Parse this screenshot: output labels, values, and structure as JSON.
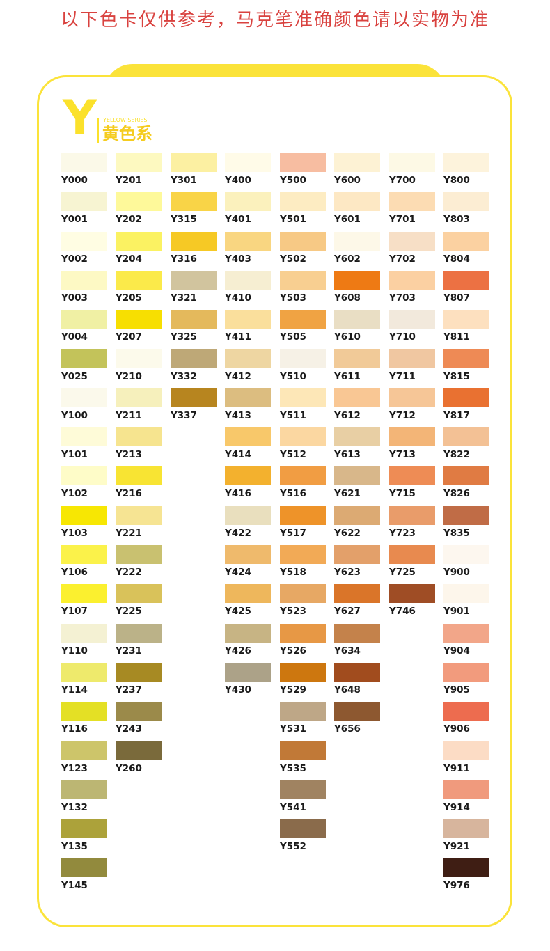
{
  "notice": "以下色卡仅供参考，马克笔准确颜色请以实物为准",
  "header": {
    "letter": "Y",
    "series_en": "YELLOW SERIES",
    "series_cn": "黄色系"
  },
  "columns": [
    [
      {
        "code": "Y000",
        "color": "#fbf9e8"
      },
      {
        "code": "Y001",
        "color": "#f7f4d2"
      },
      {
        "code": "Y002",
        "color": "#fffde3"
      },
      {
        "code": "Y003",
        "color": "#fdf9c4"
      },
      {
        "code": "Y004",
        "color": "#f0f0a4"
      },
      {
        "code": "Y025",
        "color": "#c3c35a"
      },
      {
        "code": "Y100",
        "color": "#fbf9eb"
      },
      {
        "code": "Y101",
        "color": "#fefbd8"
      },
      {
        "code": "Y102",
        "color": "#fefcc8"
      },
      {
        "code": "Y103",
        "color": "#f7e703"
      },
      {
        "code": "Y106",
        "color": "#fbf24a"
      },
      {
        "code": "Y107",
        "color": "#fbf02f"
      },
      {
        "code": "Y110",
        "color": "#f4f1d3"
      },
      {
        "code": "Y114",
        "color": "#eeea6c"
      },
      {
        "code": "Y116",
        "color": "#e4e025"
      },
      {
        "code": "Y123",
        "color": "#cdc56a"
      },
      {
        "code": "Y132",
        "color": "#bcb673"
      },
      {
        "code": "Y135",
        "color": "#aca23a"
      },
      {
        "code": "Y145",
        "color": "#928a3d"
      }
    ],
    [
      {
        "code": "Y201",
        "color": "#fdf9c0"
      },
      {
        "code": "Y202",
        "color": "#fef99a"
      },
      {
        "code": "Y204",
        "color": "#fbf262"
      },
      {
        "code": "Y205",
        "color": "#fbea4a"
      },
      {
        "code": "Y207",
        "color": "#f7df01"
      },
      {
        "code": "Y210",
        "color": "#fcfaeb"
      },
      {
        "code": "Y211",
        "color": "#f6f0bc"
      },
      {
        "code": "Y213",
        "color": "#f6e48f"
      },
      {
        "code": "Y216",
        "color": "#f8e433"
      },
      {
        "code": "Y221",
        "color": "#f6e493"
      },
      {
        "code": "Y222",
        "color": "#c9c170"
      },
      {
        "code": "Y225",
        "color": "#d9c25a"
      },
      {
        "code": "Y231",
        "color": "#bbb288"
      },
      {
        "code": "Y237",
        "color": "#a78a23"
      },
      {
        "code": "Y243",
        "color": "#9b8a4a"
      },
      {
        "code": "Y260",
        "color": "#7a6a3b"
      }
    ],
    [
      {
        "code": "Y301",
        "color": "#fcf0a2"
      },
      {
        "code": "Y315",
        "color": "#f9d447"
      },
      {
        "code": "Y316",
        "color": "#f6c925"
      },
      {
        "code": "Y321",
        "color": "#d1c49e"
      },
      {
        "code": "Y325",
        "color": "#e4b95c"
      },
      {
        "code": "Y332",
        "color": "#bea877"
      },
      {
        "code": "Y337",
        "color": "#b7851f"
      }
    ],
    [
      {
        "code": "Y400",
        "color": "#fffbe8"
      },
      {
        "code": "Y401",
        "color": "#fbf1bd"
      },
      {
        "code": "Y403",
        "color": "#f9d681"
      },
      {
        "code": "Y410",
        "color": "#f6eed2"
      },
      {
        "code": "Y411",
        "color": "#fadf9c"
      },
      {
        "code": "Y412",
        "color": "#eed6a2"
      },
      {
        "code": "Y413",
        "color": "#dcbd80"
      },
      {
        "code": "Y414",
        "color": "#f8c86a"
      },
      {
        "code": "Y416",
        "color": "#f3b12e"
      },
      {
        "code": "Y422",
        "color": "#e9dfbe"
      },
      {
        "code": "Y424",
        "color": "#efba6c"
      },
      {
        "code": "Y425",
        "color": "#eeb75c"
      },
      {
        "code": "Y426",
        "color": "#c7b484"
      },
      {
        "code": "Y430",
        "color": "#aca288"
      }
    ],
    [
      {
        "code": "Y500",
        "color": "#f7bda1"
      },
      {
        "code": "Y501",
        "color": "#fdecc2"
      },
      {
        "code": "Y502",
        "color": "#f7c985"
      },
      {
        "code": "Y503",
        "color": "#f8cf91"
      },
      {
        "code": "Y505",
        "color": "#f0a343"
      },
      {
        "code": "Y510",
        "color": "#f6f1e6"
      },
      {
        "code": "Y511",
        "color": "#fde7b7"
      },
      {
        "code": "Y512",
        "color": "#fbd7a1"
      },
      {
        "code": "Y516",
        "color": "#f19d43"
      },
      {
        "code": "Y517",
        "color": "#ee9329"
      },
      {
        "code": "Y518",
        "color": "#f2aa56"
      },
      {
        "code": "Y523",
        "color": "#e7a864"
      },
      {
        "code": "Y526",
        "color": "#e79845"
      },
      {
        "code": "Y529",
        "color": "#cd770f"
      },
      {
        "code": "Y531",
        "color": "#bea787"
      },
      {
        "code": "Y535",
        "color": "#c17937"
      },
      {
        "code": "Y541",
        "color": "#a08361"
      },
      {
        "code": "Y552",
        "color": "#8a6b4b"
      }
    ],
    [
      {
        "code": "Y600",
        "color": "#fdf2d4"
      },
      {
        "code": "Y601",
        "color": "#fde8c4"
      },
      {
        "code": "Y602",
        "color": "#fdf8e8"
      },
      {
        "code": "Y608",
        "color": "#ee7a14"
      },
      {
        "code": "Y610",
        "color": "#e9dec4"
      },
      {
        "code": "Y611",
        "color": "#f1ca98"
      },
      {
        "code": "Y612",
        "color": "#f9c794"
      },
      {
        "code": "Y613",
        "color": "#e8cfa4"
      },
      {
        "code": "Y621",
        "color": "#d8b78a"
      },
      {
        "code": "Y622",
        "color": "#dcaa73"
      },
      {
        "code": "Y623",
        "color": "#e3a06a"
      },
      {
        "code": "Y627",
        "color": "#da7529"
      },
      {
        "code": "Y634",
        "color": "#c4824b"
      },
      {
        "code": "Y648",
        "color": "#a14c1e"
      },
      {
        "code": "Y656",
        "color": "#8d5830"
      }
    ],
    [
      {
        "code": "Y700",
        "color": "#fdf9e5"
      },
      {
        "code": "Y701",
        "color": "#fcdcb3"
      },
      {
        "code": "Y702",
        "color": "#f7dfc6"
      },
      {
        "code": "Y703",
        "color": "#fbd0a2"
      },
      {
        "code": "Y710",
        "color": "#f2e9dc"
      },
      {
        "code": "Y711",
        "color": "#f0c7a1"
      },
      {
        "code": "Y712",
        "color": "#f6c697"
      },
      {
        "code": "Y713",
        "color": "#f3b577"
      },
      {
        "code": "Y715",
        "color": "#ee8c55"
      },
      {
        "code": "Y723",
        "color": "#e99c6a"
      },
      {
        "code": "Y725",
        "color": "#e88a4f"
      },
      {
        "code": "Y746",
        "color": "#9f4d25"
      }
    ],
    [
      {
        "code": "Y800",
        "color": "#fdf3dc"
      },
      {
        "code": "Y803",
        "color": "#fcedd3"
      },
      {
        "code": "Y804",
        "color": "#fbd1a1"
      },
      {
        "code": "Y807",
        "color": "#ec7143"
      },
      {
        "code": "Y811",
        "color": "#fde0bf"
      },
      {
        "code": "Y815",
        "color": "#ee8a55"
      },
      {
        "code": "Y817",
        "color": "#e97131"
      },
      {
        "code": "Y822",
        "color": "#f3c195"
      },
      {
        "code": "Y826",
        "color": "#e07b43"
      },
      {
        "code": "Y835",
        "color": "#c06c46"
      },
      {
        "code": "Y900",
        "color": "#fdf7ef"
      },
      {
        "code": "Y901",
        "color": "#fdf6eb"
      },
      {
        "code": "Y904",
        "color": "#f2a689"
      },
      {
        "code": "Y905",
        "color": "#f29b7d"
      },
      {
        "code": "Y906",
        "color": "#ed6c4f"
      },
      {
        "code": "Y911",
        "color": "#fcdcc5"
      },
      {
        "code": "Y914",
        "color": "#f09a7d"
      },
      {
        "code": "Y921",
        "color": "#d7b59d"
      },
      {
        "code": "Y976",
        "color": "#3f1e14"
      }
    ]
  ]
}
